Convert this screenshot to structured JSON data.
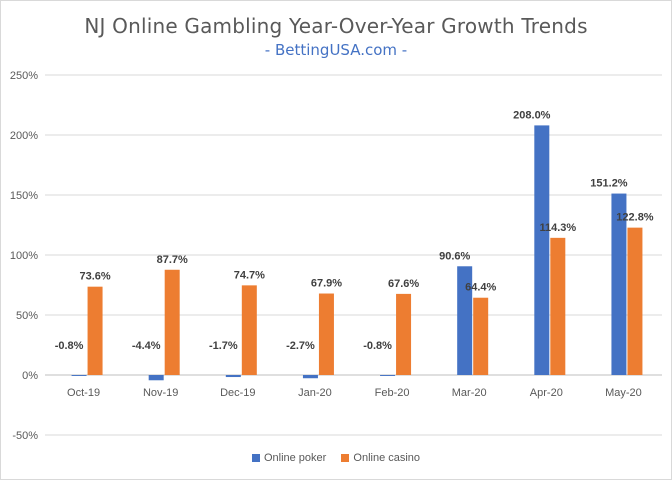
{
  "title": "NJ Online Gambling Year-Over-Year Growth Trends",
  "subtitle": "- BettingUSA.com -",
  "colors": {
    "poker": "#4472c4",
    "casino": "#ed7d31",
    "grid": "#d9d9d9"
  },
  "chart_data": {
    "type": "bar",
    "title": "NJ Online Gambling Year-Over-Year Growth Trends",
    "subtitle": "- BettingUSA.com -",
    "categories": [
      "Oct-19",
      "Nov-19",
      "Dec-19",
      "Jan-20",
      "Feb-20",
      "Mar-20",
      "Apr-20",
      "May-20"
    ],
    "series": [
      {
        "name": "Online poker",
        "values": [
          -0.8,
          -4.4,
          -1.7,
          -2.7,
          -0.8,
          90.6,
          208.0,
          151.2
        ]
      },
      {
        "name": "Online casino",
        "values": [
          73.6,
          87.7,
          74.7,
          67.9,
          67.6,
          64.4,
          114.3,
          122.8
        ]
      }
    ],
    "data_labels": [
      [
        "-0.8%",
        "-4.4%",
        "-1.7%",
        "-2.7%",
        "-0.8%",
        "90.6%",
        "208.0%",
        "151.2%"
      ],
      [
        "73.6%",
        "87.7%",
        "74.7%",
        "67.9%",
        "67.6%",
        "64.4%",
        "114.3%",
        "122.8%"
      ]
    ],
    "y_ticks": [
      "250%",
      "200%",
      "150%",
      "100%",
      "50%",
      "0%",
      "-50%"
    ],
    "y_tick_values": [
      250,
      200,
      150,
      100,
      50,
      0,
      -50
    ],
    "ylim": [
      -50,
      250
    ],
    "grid": true,
    "legend_position": "bottom"
  }
}
